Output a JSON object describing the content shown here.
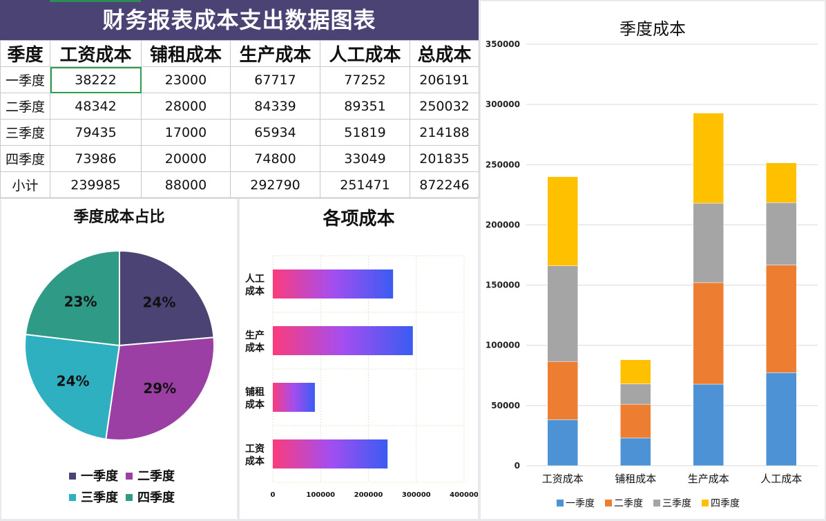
{
  "table": {
    "title": "财务报表成本支出数据图表",
    "headers": [
      "季度",
      "工资成本",
      "铺租成本",
      "生产成本",
      "人工成本",
      "总成本"
    ],
    "rows": [
      {
        "label": "一季度",
        "values": [
          "38222",
          "23000",
          "67717",
          "77252",
          "206191"
        ]
      },
      {
        "label": "二季度",
        "values": [
          "48342",
          "28000",
          "84339",
          "89351",
          "250032"
        ]
      },
      {
        "label": "三季度",
        "values": [
          "79435",
          "17000",
          "65934",
          "51819",
          "214188"
        ]
      },
      {
        "label": "四季度",
        "values": [
          "73986",
          "20000",
          "74800",
          "33049",
          "201835"
        ]
      },
      {
        "label": "小计",
        "values": [
          "239985",
          "88000",
          "292790",
          "251471",
          "872246"
        ]
      }
    ]
  },
  "chart_data": [
    {
      "type": "pie",
      "title": "季度成本占比",
      "labels": [
        "一季度",
        "二季度",
        "三季度",
        "四季度"
      ],
      "values": [
        206191,
        250032,
        214188,
        201835
      ],
      "data_labels": [
        "24%",
        "29%",
        "24%",
        "23%"
      ],
      "colors": [
        "#4b4374",
        "#9b3fa4",
        "#2fb0c0",
        "#2f9a86"
      ],
      "legend": "bottom"
    },
    {
      "type": "bar",
      "orientation": "horizontal",
      "title": "各项成本",
      "categories": [
        "工资成本",
        "铺租成本",
        "生产成本",
        "人工成本"
      ],
      "category_labels": [
        [
          "工资",
          "成本"
        ],
        [
          "铺租",
          "成本"
        ],
        [
          "生产",
          "成本"
        ],
        [
          "人工",
          "成本"
        ]
      ],
      "values": [
        239985,
        88000,
        292790,
        251471
      ],
      "xlim": [
        0,
        400000
      ],
      "xticks": [
        "0",
        "100000",
        "200000",
        "300000",
        "400000"
      ],
      "gradient": [
        "#fb3c7c",
        "#a44ef0",
        "#3a5cf2"
      ],
      "grid": true
    },
    {
      "type": "bar",
      "stacked": true,
      "title": "季度成本",
      "categories": [
        "工资成本",
        "铺租成本",
        "生产成本",
        "人工成本"
      ],
      "series": [
        {
          "name": "一季度",
          "values": [
            38222,
            23000,
            67717,
            77252
          ],
          "color": "#4d92d4"
        },
        {
          "name": "二季度",
          "values": [
            48342,
            28000,
            84339,
            89351
          ],
          "color": "#ec7d31"
        },
        {
          "name": "三季度",
          "values": [
            79435,
            17000,
            65934,
            51819
          ],
          "color": "#a5a5a5"
        },
        {
          "name": "四季度",
          "values": [
            73986,
            20000,
            74800,
            33049
          ],
          "color": "#ffc000"
        }
      ],
      "ylim": [
        0,
        350000
      ],
      "yticks": [
        "0",
        "50000",
        "100000",
        "150000",
        "200000",
        "250000",
        "300000",
        "350000"
      ],
      "grid": true,
      "legend": "bottom"
    }
  ]
}
